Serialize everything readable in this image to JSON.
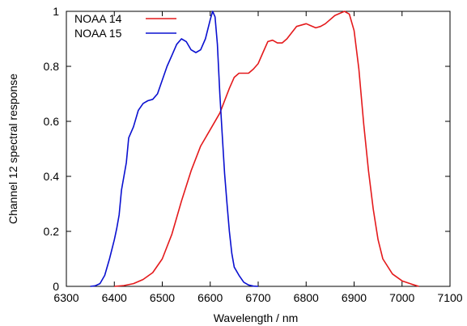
{
  "chart_data": {
    "type": "line",
    "xlabel": "Wavelength / nm",
    "ylabel": "Channel 12 spectral response",
    "xlim": [
      6300,
      7100
    ],
    "ylim": [
      0,
      1
    ],
    "x_ticks": [
      "6300",
      "6400",
      "6500",
      "6600",
      "6700",
      "6800",
      "6900",
      "7000",
      "7100"
    ],
    "y_ticks": [
      "0",
      "0.2",
      "0.4",
      "0.6",
      "0.8",
      "1"
    ],
    "grid": false,
    "legend_position": "top-left",
    "series": [
      {
        "name": "NOAA 14",
        "color": "#e41a1c",
        "x": [
          6400,
          6420,
          6440,
          6460,
          6480,
          6500,
          6520,
          6540,
          6560,
          6580,
          6600,
          6620,
          6640,
          6650,
          6660,
          6670,
          6680,
          6690,
          6700,
          6710,
          6720,
          6730,
          6740,
          6750,
          6760,
          6780,
          6800,
          6820,
          6830,
          6840,
          6860,
          6880,
          6890,
          6900,
          6910,
          6920,
          6930,
          6940,
          6950,
          6960,
          6980,
          7000,
          7020,
          7035
        ],
        "y": [
          0.0,
          0.003,
          0.01,
          0.025,
          0.05,
          0.1,
          0.19,
          0.31,
          0.42,
          0.51,
          0.57,
          0.63,
          0.72,
          0.76,
          0.775,
          0.775,
          0.775,
          0.79,
          0.81,
          0.85,
          0.89,
          0.895,
          0.885,
          0.885,
          0.9,
          0.945,
          0.955,
          0.94,
          0.945,
          0.955,
          0.985,
          1.0,
          0.99,
          0.93,
          0.79,
          0.59,
          0.42,
          0.28,
          0.17,
          0.1,
          0.045,
          0.02,
          0.008,
          0.0
        ]
      },
      {
        "name": "NOAA 15",
        "color": "#0a10d0",
        "x": [
          6350,
          6360,
          6370,
          6380,
          6390,
          6400,
          6405,
          6410,
          6415,
          6420,
          6425,
          6430,
          6440,
          6450,
          6460,
          6470,
          6480,
          6490,
          6500,
          6510,
          6520,
          6530,
          6540,
          6550,
          6560,
          6570,
          6580,
          6590,
          6600,
          6605,
          6610,
          6615,
          6620,
          6625,
          6630,
          6635,
          6640,
          6645,
          6650,
          6660,
          6670,
          6680,
          6690,
          6700
        ],
        "y": [
          0.0,
          0.002,
          0.01,
          0.04,
          0.1,
          0.17,
          0.21,
          0.26,
          0.35,
          0.4,
          0.45,
          0.54,
          0.58,
          0.64,
          0.665,
          0.675,
          0.68,
          0.7,
          0.75,
          0.8,
          0.84,
          0.88,
          0.9,
          0.89,
          0.86,
          0.85,
          0.86,
          0.9,
          0.97,
          1.0,
          0.98,
          0.88,
          0.7,
          0.55,
          0.41,
          0.3,
          0.2,
          0.12,
          0.07,
          0.04,
          0.015,
          0.005,
          0.001,
          0.0
        ]
      }
    ]
  }
}
